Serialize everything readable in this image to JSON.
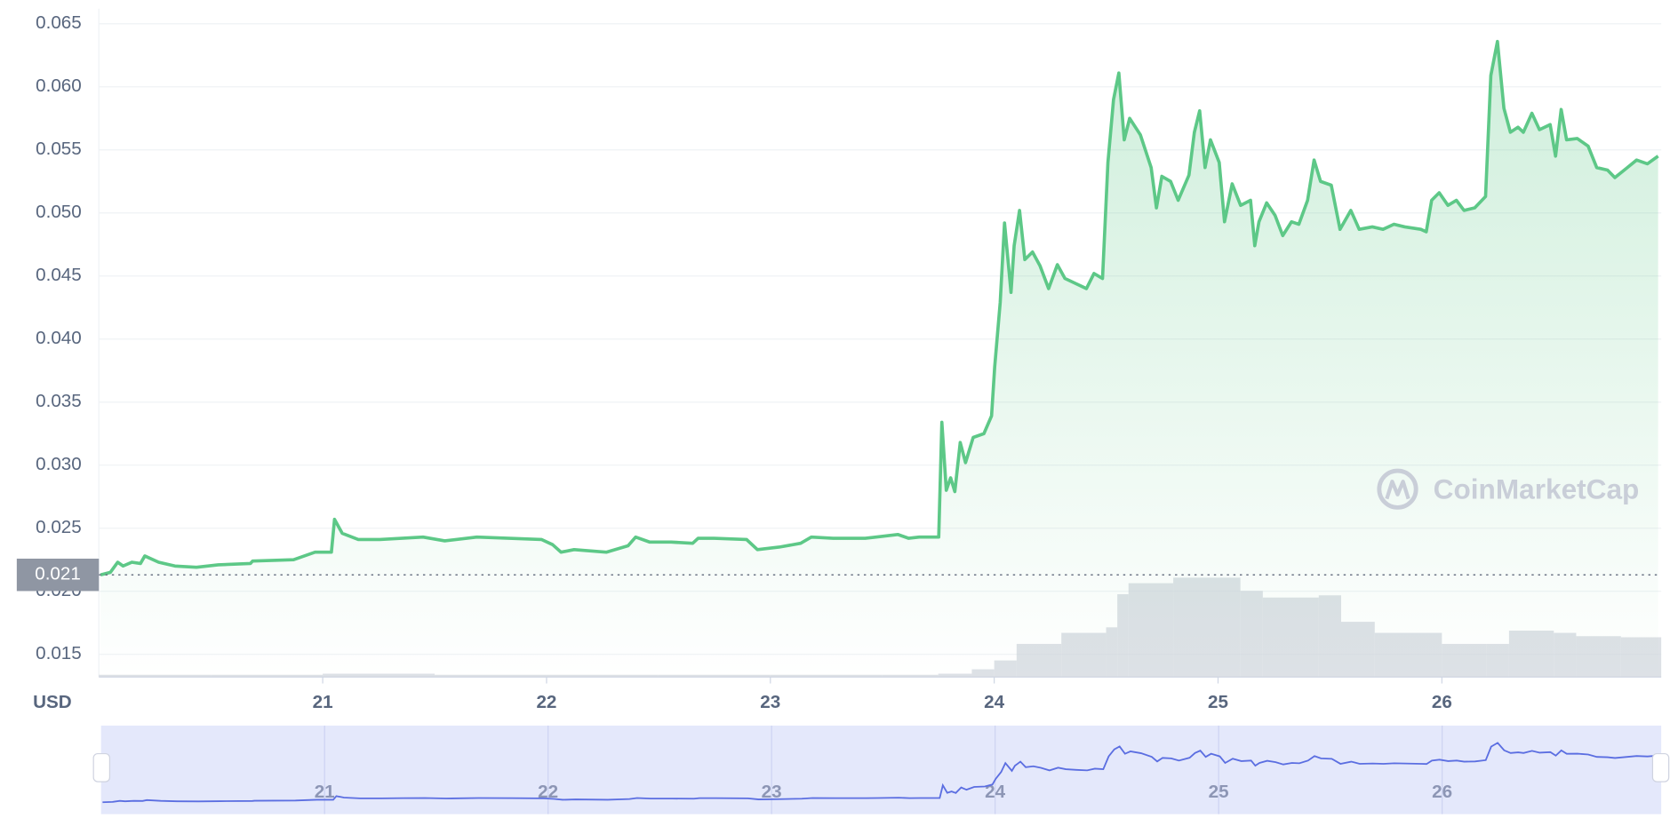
{
  "chart_data": {
    "type": "area",
    "color": "#5dc887",
    "currency_label": "USD",
    "watermark": "CoinMarketCap",
    "xlim": [
      20.0,
      26.98
    ],
    "ylim": [
      0.0132,
      0.0662
    ],
    "xticks": [
      21,
      22,
      23,
      24,
      25,
      26
    ],
    "yticks": [
      0.015,
      {
        "value": 0.02,
        "label": "0.020"
      },
      0.025,
      {
        "value": 0.03,
        "label": "0.030"
      },
      0.035,
      {
        "value": 0.04,
        "label": "0.040"
      },
      0.045,
      {
        "value": 0.05,
        "label": "0.050"
      },
      0.055,
      {
        "value": 0.06,
        "label": "0.060"
      },
      0.065
    ],
    "grid": true,
    "reference_line": {
      "value": 0.0213,
      "label": "0.021"
    },
    "x": [
      20.007,
      20.051,
      20.084,
      20.108,
      20.147,
      20.186,
      20.205,
      20.267,
      20.34,
      20.436,
      20.533,
      20.677,
      20.687,
      20.87,
      20.966,
      21.039,
      21.053,
      21.087,
      21.159,
      21.255,
      21.352,
      21.448,
      21.545,
      21.689,
      21.834,
      21.978,
      22.027,
      22.065,
      22.123,
      22.267,
      22.364,
      22.398,
      22.46,
      22.557,
      22.653,
      22.677,
      22.749,
      22.894,
      22.942,
      23.039,
      23.135,
      23.183,
      23.28,
      23.424,
      23.472,
      23.569,
      23.617,
      23.665,
      23.752,
      23.766,
      23.786,
      23.805,
      23.824,
      23.848,
      23.872,
      23.906,
      23.954,
      23.988,
      24.002,
      24.027,
      24.046,
      24.075,
      24.089,
      24.113,
      24.137,
      24.171,
      24.205,
      24.243,
      24.282,
      24.316,
      24.364,
      24.412,
      24.446,
      24.484,
      24.508,
      24.533,
      24.557,
      24.581,
      24.605,
      24.653,
      24.701,
      24.725,
      24.749,
      24.788,
      24.822,
      24.87,
      24.894,
      24.918,
      24.942,
      24.966,
      25.005,
      25.029,
      25.063,
      25.101,
      25.145,
      25.164,
      25.183,
      25.217,
      25.255,
      25.289,
      25.328,
      25.361,
      25.4,
      25.429,
      25.458,
      25.506,
      25.545,
      25.593,
      25.631,
      25.689,
      25.737,
      25.786,
      25.834,
      25.906,
      25.93,
      25.954,
      25.988,
      26.027,
      26.065,
      26.099,
      26.147,
      26.195,
      26.219,
      26.248,
      26.277,
      26.306,
      26.34,
      26.364,
      26.402,
      26.436,
      26.484,
      26.508,
      26.533,
      26.557,
      26.605,
      26.653,
      26.692,
      26.74,
      26.773,
      26.822,
      26.87,
      26.918,
      26.966
    ],
    "values": [
      0.0213,
      0.0215,
      0.0223,
      0.022,
      0.0223,
      0.0222,
      0.0228,
      0.0223,
      0.022,
      0.0219,
      0.0221,
      0.0222,
      0.0224,
      0.0225,
      0.0231,
      0.0231,
      0.0257,
      0.0246,
      0.0241,
      0.0241,
      0.0242,
      0.0243,
      0.024,
      0.0243,
      0.0242,
      0.0241,
      0.0237,
      0.0231,
      0.0233,
      0.0231,
      0.0236,
      0.0243,
      0.0239,
      0.0239,
      0.0238,
      0.0242,
      0.0242,
      0.0241,
      0.0233,
      0.0235,
      0.0238,
      0.0243,
      0.0242,
      0.0242,
      0.0243,
      0.0245,
      0.0242,
      0.0243,
      0.0243,
      0.0334,
      0.028,
      0.029,
      0.0279,
      0.0318,
      0.0302,
      0.0322,
      0.0325,
      0.0339,
      0.0378,
      0.0429,
      0.0492,
      0.0437,
      0.0474,
      0.0502,
      0.0463,
      0.0469,
      0.0458,
      0.044,
      0.0459,
      0.0448,
      0.0444,
      0.044,
      0.0452,
      0.0448,
      0.054,
      0.059,
      0.0611,
      0.0558,
      0.0575,
      0.0562,
      0.0536,
      0.0504,
      0.0529,
      0.0525,
      0.051,
      0.053,
      0.0564,
      0.0581,
      0.0536,
      0.0558,
      0.054,
      0.0493,
      0.0523,
      0.0506,
      0.051,
      0.0474,
      0.0493,
      0.0508,
      0.0498,
      0.0482,
      0.0493,
      0.0491,
      0.051,
      0.0542,
      0.0525,
      0.0522,
      0.0487,
      0.0502,
      0.0487,
      0.0489,
      0.0487,
      0.0491,
      0.0489,
      0.0487,
      0.0485,
      0.051,
      0.0516,
      0.0506,
      0.051,
      0.0502,
      0.0504,
      0.0513,
      0.0609,
      0.0636,
      0.0583,
      0.0564,
      0.0568,
      0.0564,
      0.0579,
      0.0566,
      0.057,
      0.0545,
      0.0582,
      0.0558,
      0.0559,
      0.0553,
      0.0536,
      0.0534,
      0.0528,
      0.0535,
      0.0542,
      0.0539,
      0.0545
    ],
    "volume": {
      "color": "#cfd4dc",
      "x": [
        20.0,
        20.5,
        21.0,
        21.5,
        22.0,
        22.5,
        23.0,
        23.5,
        23.75,
        23.9,
        24.0,
        24.1,
        24.3,
        24.5,
        24.55,
        24.6,
        24.8,
        25.0,
        25.1,
        25.2,
        25.45,
        25.55,
        25.7,
        26.0,
        26.2,
        26.3,
        26.5,
        26.6,
        26.8
      ],
      "values": [
        2,
        2,
        3,
        2,
        2,
        2,
        2,
        2,
        3,
        7,
        15,
        30,
        40,
        45,
        75,
        85,
        90,
        90,
        78,
        72,
        74,
        50,
        40,
        30,
        30,
        42,
        40,
        37,
        36
      ]
    },
    "navigator": {
      "color": "#5b6ee1"
    }
  }
}
